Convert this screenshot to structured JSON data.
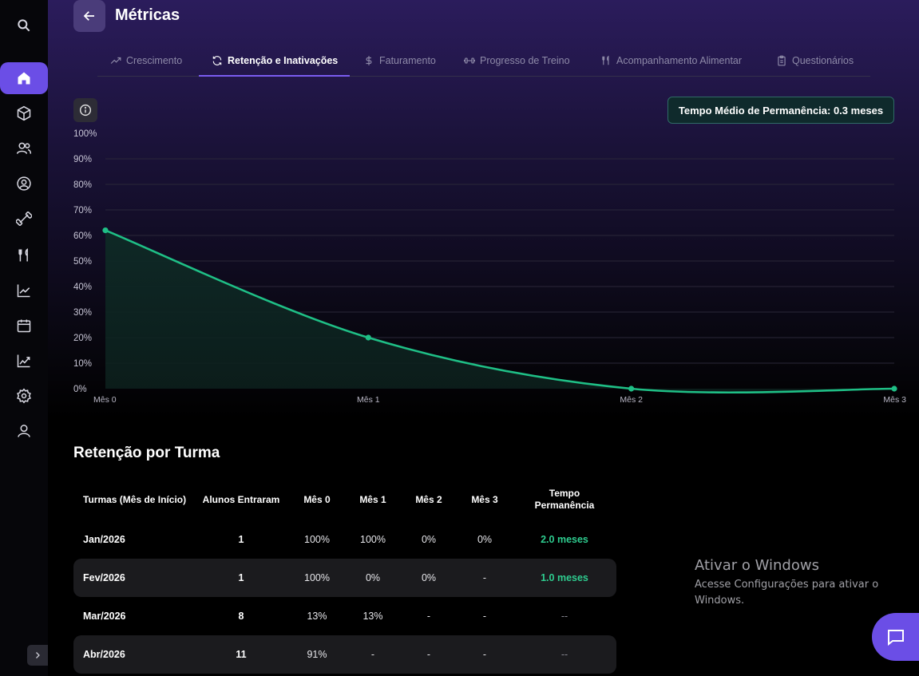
{
  "header": {
    "title": "Métricas"
  },
  "tabs": [
    {
      "label": "Crescimento",
      "icon": "trending-up-icon"
    },
    {
      "label": "Retenção e Inativações",
      "icon": "refresh-icon",
      "active": true
    },
    {
      "label": "Faturamento",
      "icon": "dollar-icon"
    },
    {
      "label": "Progresso de Treino",
      "icon": "dumbbell-icon"
    },
    {
      "label": "Acompanhamento Alimentar",
      "icon": "utensils-icon"
    },
    {
      "label": "Questionários",
      "icon": "clipboard-icon"
    }
  ],
  "sidebar": {
    "items": [
      {
        "icon": "search-icon"
      },
      {
        "icon": "home-icon",
        "active": true
      },
      {
        "icon": "package-icon"
      },
      {
        "icon": "users-icon"
      },
      {
        "icon": "user-circle-icon"
      },
      {
        "icon": "dumbbell-icon"
      },
      {
        "icon": "utensils-icon"
      },
      {
        "icon": "line-chart-icon"
      },
      {
        "icon": "calendar-icon"
      },
      {
        "icon": "trending-chart-icon"
      },
      {
        "icon": "settings-icon"
      },
      {
        "icon": "user-icon"
      }
    ]
  },
  "avg_badge": "Tempo Médio de Permanência: 0.3 meses",
  "chart_data": {
    "type": "area",
    "title": "",
    "x": [
      "Mês 0",
      "Mês 1",
      "Mês 2",
      "Mês 3"
    ],
    "y_ticks": [
      "0%",
      "10%",
      "20%",
      "30%",
      "40%",
      "50%",
      "60%",
      "70%",
      "80%",
      "90%",
      "100%"
    ],
    "series": [
      {
        "values": [
          62,
          20,
          0,
          0
        ]
      }
    ],
    "ylim": [
      0,
      100
    ],
    "color": "#1fbf86"
  },
  "retention_table": {
    "title": "Retenção por Turma",
    "headers": [
      "Turmas (Mês de Início)",
      "Alunos Entraram",
      "Mês 0",
      "Mês 1",
      "Mês 2",
      "Mês 3",
      "Tempo Permanência"
    ],
    "rows": [
      {
        "turma": "Jan/2026",
        "alunos": "1",
        "m0": "100%",
        "m1": "100%",
        "m2": "0%",
        "m3": "0%",
        "tempo": "2.0 meses"
      },
      {
        "turma": "Fev/2026",
        "alunos": "1",
        "m0": "100%",
        "m1": "0%",
        "m2": "0%",
        "m3": "-",
        "tempo": "1.0 meses"
      },
      {
        "turma": "Mar/2026",
        "alunos": "8",
        "m0": "13%",
        "m1": "13%",
        "m2": "-",
        "m3": "-",
        "tempo": "--"
      },
      {
        "turma": "Abr/2026",
        "alunos": "11",
        "m0": "91%",
        "m1": "-",
        "m2": "-",
        "m3": "-",
        "tempo": "--"
      }
    ]
  },
  "watermark": {
    "title": "Ativar o Windows",
    "text": "Acesse Configurações para ativar o Windows."
  }
}
